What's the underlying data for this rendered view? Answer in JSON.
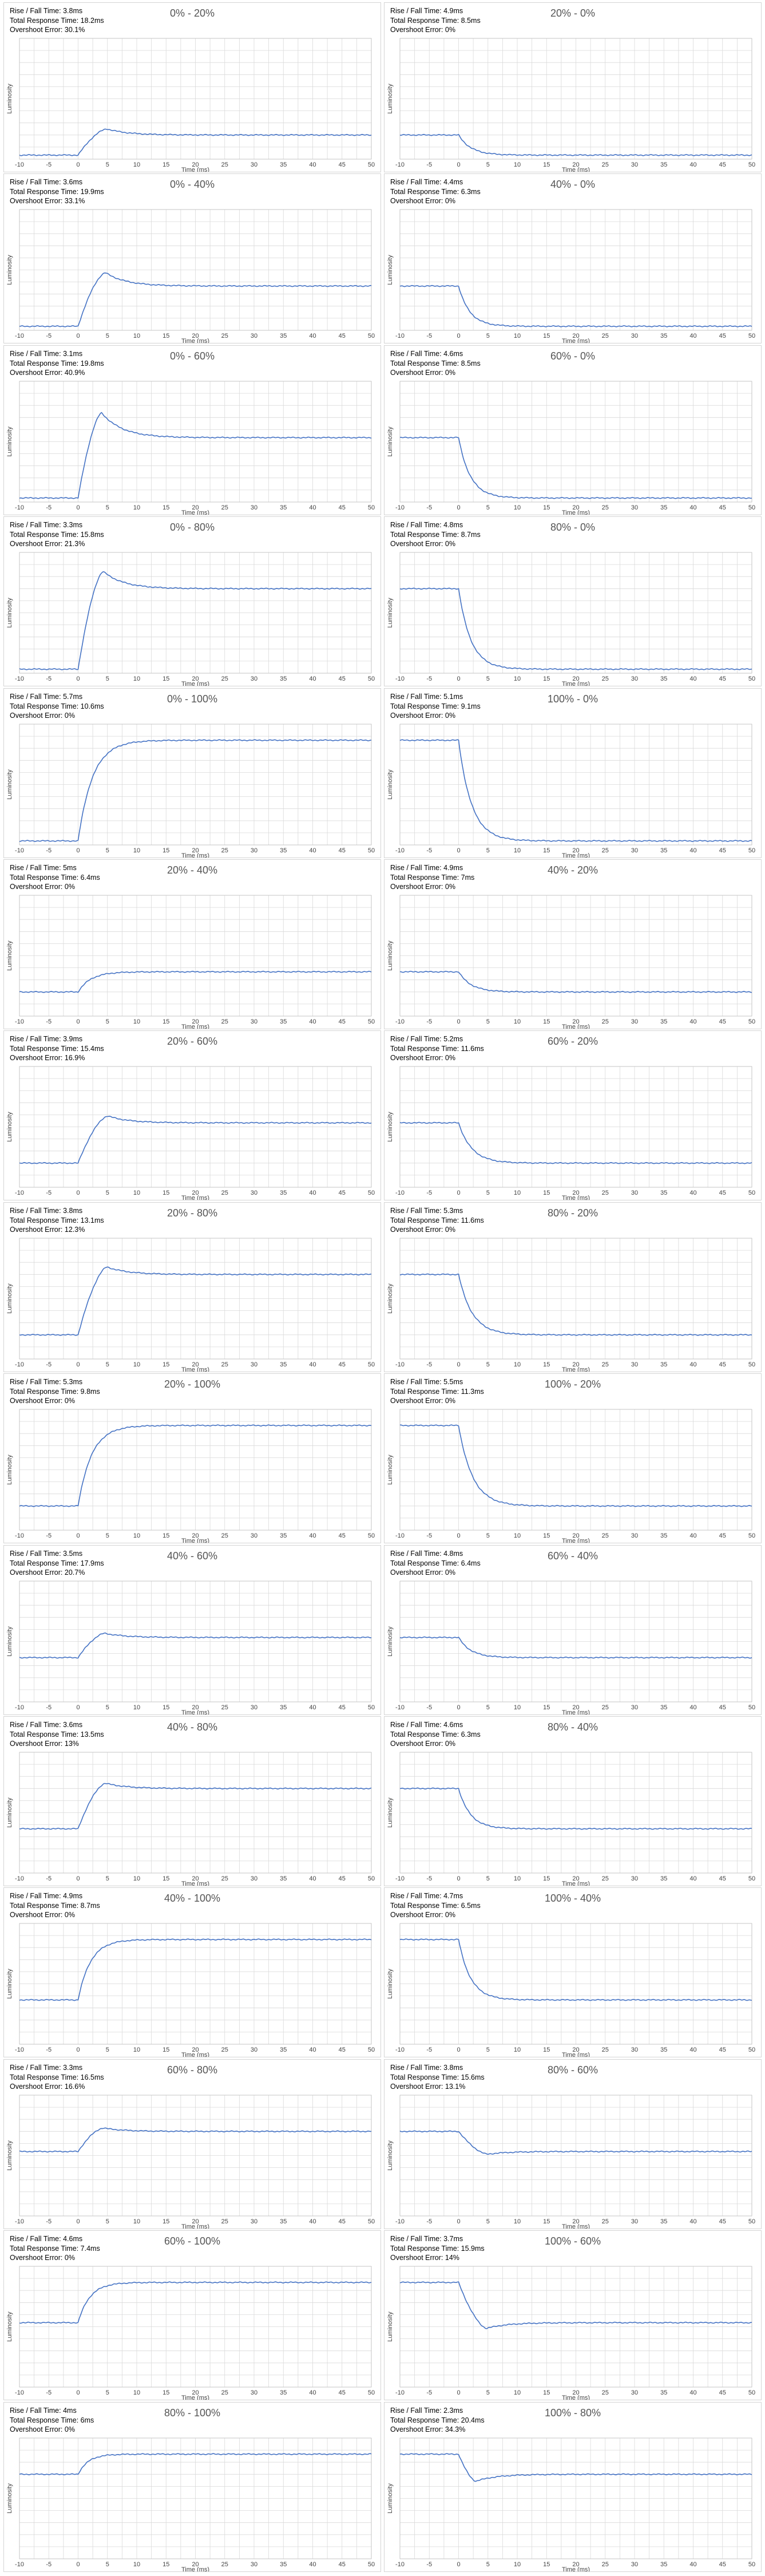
{
  "axes": {
    "xlabel": "Time (ms)",
    "ylabel": "Luminosity",
    "xticks": [
      -10,
      -5,
      0,
      5,
      10,
      15,
      20,
      25,
      30,
      35,
      40,
      45,
      50
    ],
    "xlim": [
      -10,
      50
    ],
    "grid": true
  },
  "labels": {
    "rise_fall": "Rise / Fall Time: ",
    "total": "Total Response Time: ",
    "overshoot": "Overshoot Error: "
  },
  "colors": {
    "line": "#4472c4",
    "grid": "#d9d9d9"
  },
  "chart_data": [
    {
      "type": "line",
      "title": "0% - 20%",
      "rise_fall": "3.8ms",
      "total": "18.2ms",
      "overshoot": "30.1%",
      "dir": "rise",
      "start": 0,
      "end": 20
    },
    {
      "type": "line",
      "title": "20% - 0%",
      "rise_fall": "4.9ms",
      "total": "8.5ms",
      "overshoot": "0%",
      "dir": "fall",
      "start": 20,
      "end": 0
    },
    {
      "type": "line",
      "title": "0% - 40%",
      "rise_fall": "3.6ms",
      "total": "19.9ms",
      "overshoot": "33.1%",
      "dir": "rise",
      "start": 0,
      "end": 40
    },
    {
      "type": "line",
      "title": "40% - 0%",
      "rise_fall": "4.4ms",
      "total": "6.3ms",
      "overshoot": "0%",
      "dir": "fall",
      "start": 40,
      "end": 0
    },
    {
      "type": "line",
      "title": "0% - 60%",
      "rise_fall": "3.1ms",
      "total": "19.8ms",
      "overshoot": "40.9%",
      "dir": "rise",
      "start": 0,
      "end": 60
    },
    {
      "type": "line",
      "title": "60% - 0%",
      "rise_fall": "4.6ms",
      "total": "8.5ms",
      "overshoot": "0%",
      "dir": "fall",
      "start": 60,
      "end": 0
    },
    {
      "type": "line",
      "title": "0% - 80%",
      "rise_fall": "3.3ms",
      "total": "15.8ms",
      "overshoot": "21.3%",
      "dir": "rise",
      "start": 0,
      "end": 80
    },
    {
      "type": "line",
      "title": "80% - 0%",
      "rise_fall": "4.8ms",
      "total": "8.7ms",
      "overshoot": "0%",
      "dir": "fall",
      "start": 80,
      "end": 0
    },
    {
      "type": "line",
      "title": "0% - 100%",
      "rise_fall": "5.7ms",
      "total": "10.6ms",
      "overshoot": "0%",
      "dir": "rise",
      "start": 0,
      "end": 100
    },
    {
      "type": "line",
      "title": "100% - 0%",
      "rise_fall": "5.1ms",
      "total": "9.1ms",
      "overshoot": "0%",
      "dir": "fall",
      "start": 100,
      "end": 0
    },
    {
      "type": "line",
      "title": "20% - 40%",
      "rise_fall": "5ms",
      "total": "6.4ms",
      "overshoot": "0%",
      "dir": "rise",
      "start": 20,
      "end": 40
    },
    {
      "type": "line",
      "title": "40% - 20%",
      "rise_fall": "4.9ms",
      "total": "7ms",
      "overshoot": "0%",
      "dir": "fall",
      "start": 40,
      "end": 20
    },
    {
      "type": "line",
      "title": "20% - 60%",
      "rise_fall": "3.9ms",
      "total": "15.4ms",
      "overshoot": "16.9%",
      "dir": "rise",
      "start": 20,
      "end": 60
    },
    {
      "type": "line",
      "title": "60% - 20%",
      "rise_fall": "5.2ms",
      "total": "11.6ms",
      "overshoot": "0%",
      "dir": "fall",
      "start": 60,
      "end": 20
    },
    {
      "type": "line",
      "title": "20% - 80%",
      "rise_fall": "3.8ms",
      "total": "13.1ms",
      "overshoot": "12.3%",
      "dir": "rise",
      "start": 20,
      "end": 80
    },
    {
      "type": "line",
      "title": "80% - 20%",
      "rise_fall": "5.3ms",
      "total": "11.6ms",
      "overshoot": "0%",
      "dir": "fall",
      "start": 80,
      "end": 20
    },
    {
      "type": "line",
      "title": "20% - 100%",
      "rise_fall": "5.3ms",
      "total": "9.8ms",
      "overshoot": "0%",
      "dir": "rise",
      "start": 20,
      "end": 100
    },
    {
      "type": "line",
      "title": "100% - 20%",
      "rise_fall": "5.5ms",
      "total": "11.3ms",
      "overshoot": "0%",
      "dir": "fall",
      "start": 100,
      "end": 20
    },
    {
      "type": "line",
      "title": "40% - 60%",
      "rise_fall": "3.5ms",
      "total": "17.9ms",
      "overshoot": "20.7%",
      "dir": "rise",
      "start": 40,
      "end": 60
    },
    {
      "type": "line",
      "title": "60% - 40%",
      "rise_fall": "4.8ms",
      "total": "6.4ms",
      "overshoot": "0%",
      "dir": "fall",
      "start": 60,
      "end": 40
    },
    {
      "type": "line",
      "title": "40% - 80%",
      "rise_fall": "3.6ms",
      "total": "13.5ms",
      "overshoot": "13%",
      "dir": "rise",
      "start": 40,
      "end": 80
    },
    {
      "type": "line",
      "title": "80% - 40%",
      "rise_fall": "4.6ms",
      "total": "6.3ms",
      "overshoot": "0%",
      "dir": "fall",
      "start": 80,
      "end": 40
    },
    {
      "type": "line",
      "title": "40% - 100%",
      "rise_fall": "4.9ms",
      "total": "8.7ms",
      "overshoot": "0%",
      "dir": "rise",
      "start": 40,
      "end": 100
    },
    {
      "type": "line",
      "title": "100% - 40%",
      "rise_fall": "4.7ms",
      "total": "6.5ms",
      "overshoot": "0%",
      "dir": "fall",
      "start": 100,
      "end": 40
    },
    {
      "type": "line",
      "title": "60% - 80%",
      "rise_fall": "3.3ms",
      "total": "16.5ms",
      "overshoot": "16.6%",
      "dir": "rise",
      "start": 60,
      "end": 80
    },
    {
      "type": "line",
      "title": "80% - 60%",
      "rise_fall": "3.8ms",
      "total": "15.6ms",
      "overshoot": "13.1%",
      "dir": "fall",
      "start": 80,
      "end": 60
    },
    {
      "type": "line",
      "title": "60% - 100%",
      "rise_fall": "4.6ms",
      "total": "7.4ms",
      "overshoot": "0%",
      "dir": "rise",
      "start": 60,
      "end": 100
    },
    {
      "type": "line",
      "title": "100% - 60%",
      "rise_fall": "3.7ms",
      "total": "15.9ms",
      "overshoot": "14%",
      "dir": "fall",
      "start": 100,
      "end": 60
    },
    {
      "type": "line",
      "title": "80% - 100%",
      "rise_fall": "4ms",
      "total": "6ms",
      "overshoot": "0%",
      "dir": "rise",
      "start": 80,
      "end": 100
    },
    {
      "type": "line",
      "title": "100% - 80%",
      "rise_fall": "2.3ms",
      "total": "20.4ms",
      "overshoot": "34.3%",
      "dir": "fall",
      "start": 100,
      "end": 80
    }
  ]
}
